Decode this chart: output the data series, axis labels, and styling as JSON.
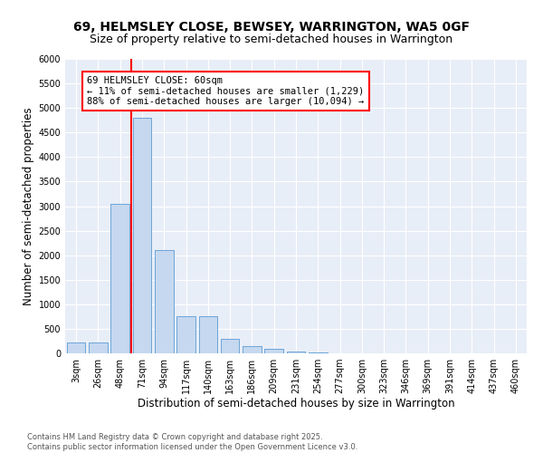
{
  "title": "69, HELMSLEY CLOSE, BEWSEY, WARRINGTON, WA5 0GF",
  "subtitle": "Size of property relative to semi-detached houses in Warrington",
  "xlabel": "Distribution of semi-detached houses by size in Warrington",
  "ylabel": "Number of semi-detached properties",
  "categories": [
    "3sqm",
    "26sqm",
    "48sqm",
    "71sqm",
    "94sqm",
    "117sqm",
    "140sqm",
    "163sqm",
    "186sqm",
    "209sqm",
    "231sqm",
    "254sqm",
    "277sqm",
    "300sqm",
    "323sqm",
    "346sqm",
    "369sqm",
    "391sqm",
    "414sqm",
    "437sqm",
    "460sqm"
  ],
  "values": [
    220,
    220,
    3050,
    4800,
    2100,
    750,
    750,
    290,
    150,
    90,
    30,
    10,
    0,
    0,
    0,
    0,
    0,
    0,
    0,
    0,
    0
  ],
  "bar_color": "#c5d8ef",
  "bar_edge_color": "#5b9bd5",
  "property_label": "69 HELMSLEY CLOSE: 60sqm",
  "pct_smaller": 11,
  "count_smaller": 1229,
  "pct_larger": 88,
  "count_larger": 10094,
  "vline_color": "red",
  "ylim": [
    0,
    6000
  ],
  "yticks": [
    0,
    500,
    1000,
    1500,
    2000,
    2500,
    3000,
    3500,
    4000,
    4500,
    5000,
    5500,
    6000
  ],
  "bg_color": "#e8eef7",
  "footer": "Contains HM Land Registry data © Crown copyright and database right 2025.\nContains public sector information licensed under the Open Government Licence v3.0.",
  "title_fontsize": 10,
  "subtitle_fontsize": 9,
  "axis_label_fontsize": 8.5,
  "tick_fontsize": 7,
  "footer_fontsize": 6
}
